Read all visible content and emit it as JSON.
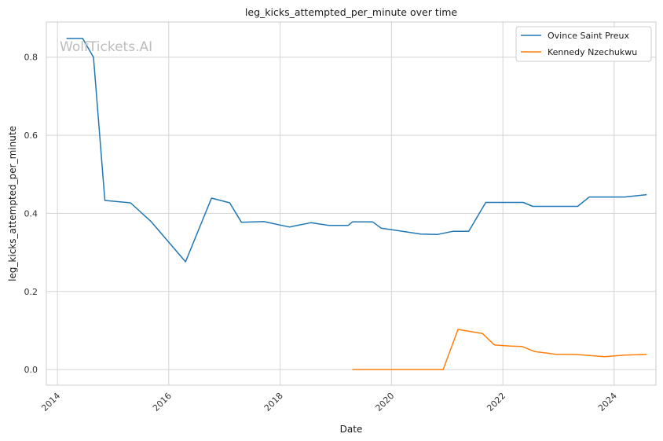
{
  "chart_data": {
    "type": "line",
    "title": "leg_kicks_attempted_per_minute over time",
    "xlabel": "Date",
    "ylabel": "leg_kicks_attempted_per_minute",
    "watermark": "WolfTickets.AI",
    "xlim": [
      "2013-10-20",
      "2024-10-01"
    ],
    "ylim": [
      -0.04,
      0.89
    ],
    "x_ticks": [
      "2014",
      "2016",
      "2018",
      "2020",
      "2022",
      "2024"
    ],
    "y_ticks": [
      "0.0",
      "0.2",
      "0.4",
      "0.6",
      "0.8"
    ],
    "grid": true,
    "legend_position": "top-right",
    "colors": {
      "series_0": "#1f77b4",
      "series_1": "#ff7f0e",
      "grid": "#d3d3d3",
      "axes": "#cccccc"
    },
    "series": [
      {
        "name": "Ovince Saint Preux",
        "points": [
          [
            "2014-03-01",
            0.848
          ],
          [
            "2014-06-15",
            0.848
          ],
          [
            "2014-08-25",
            0.8
          ],
          [
            "2014-11-08",
            0.433
          ],
          [
            "2015-04-25",
            0.427
          ],
          [
            "2015-09-05",
            0.38
          ],
          [
            "2016-04-20",
            0.276
          ],
          [
            "2016-10-08",
            0.439
          ],
          [
            "2017-02-04",
            0.427
          ],
          [
            "2017-04-22",
            0.377
          ],
          [
            "2017-09-16",
            0.379
          ],
          [
            "2018-03-03",
            0.365
          ],
          [
            "2018-07-21",
            0.376
          ],
          [
            "2018-11-17",
            0.369
          ],
          [
            "2019-03-23",
            0.369
          ],
          [
            "2019-04-20",
            0.378
          ],
          [
            "2019-08-31",
            0.378
          ],
          [
            "2019-10-26",
            0.362
          ],
          [
            "2020-07-11",
            0.347
          ],
          [
            "2020-10-31",
            0.346
          ],
          [
            "2021-02-06",
            0.354
          ],
          [
            "2021-05-22",
            0.354
          ],
          [
            "2021-09-11",
            0.428
          ],
          [
            "2022-05-14",
            0.428
          ],
          [
            "2022-07-16",
            0.418
          ],
          [
            "2022-11-19",
            0.418
          ],
          [
            "2023-05-06",
            0.418
          ],
          [
            "2023-07-22",
            0.442
          ],
          [
            "2023-12-02",
            0.442
          ],
          [
            "2024-03-09",
            0.442
          ],
          [
            "2024-08-01",
            0.448
          ]
        ]
      },
      {
        "name": "Kennedy Nzechukwu",
        "points": [
          [
            "2019-04-20",
            0.0
          ],
          [
            "2019-11-09",
            0.0
          ],
          [
            "2020-08-08",
            0.0
          ],
          [
            "2020-12-05",
            0.0
          ],
          [
            "2021-03-13",
            0.103
          ],
          [
            "2021-08-21",
            0.092
          ],
          [
            "2021-11-06",
            0.063
          ],
          [
            "2022-02-19",
            0.06
          ],
          [
            "2022-05-07",
            0.059
          ],
          [
            "2022-07-30",
            0.046
          ],
          [
            "2022-12-17",
            0.039
          ],
          [
            "2023-04-15",
            0.039
          ],
          [
            "2023-10-28",
            0.033
          ],
          [
            "2024-03-09",
            0.037
          ],
          [
            "2024-08-01",
            0.039
          ]
        ]
      }
    ]
  }
}
